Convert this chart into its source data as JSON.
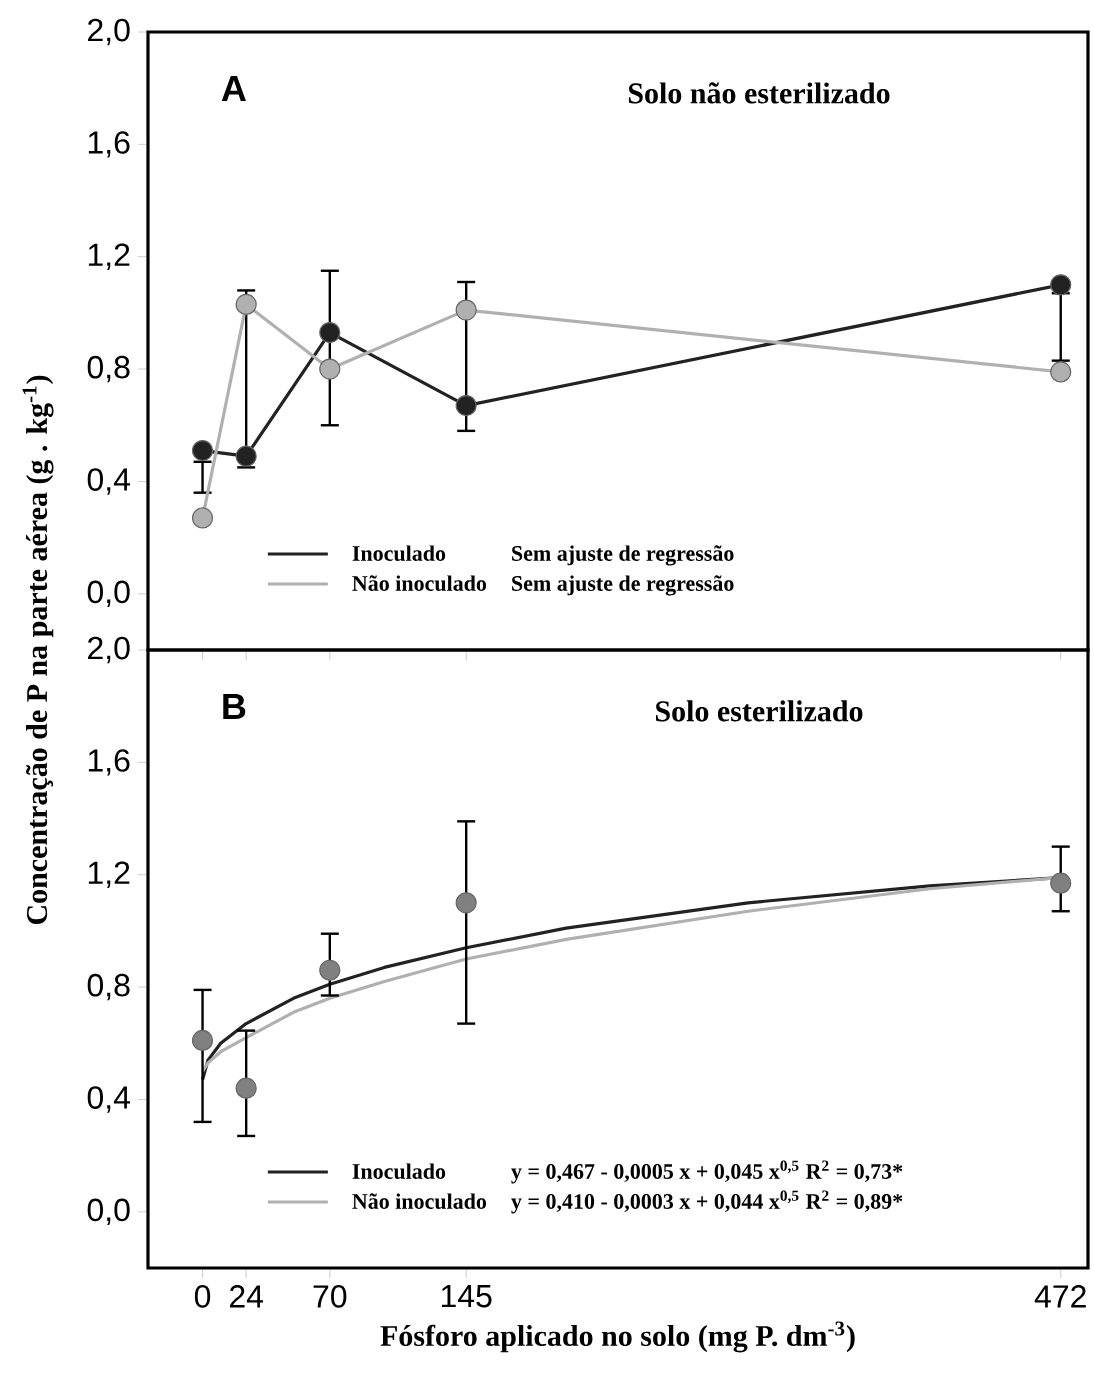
{
  "chart_data": [
    {
      "type": "line",
      "title": "Solo não esterilizado",
      "ylabel": "Concentração de P na parte aérea (g . kg$^{-1}$)",
      "annotations": [
        "A",
        "Sem ajuste de regressão",
        "Sem ajuste de regressão"
      ],
      "x": [
        0,
        24,
        70,
        145,
        472
      ],
      "xlim": [
        -30,
        487
      ],
      "xticks": [
        0,
        24,
        70,
        145,
        472
      ],
      "ylim": [
        -0.2,
        2.0
      ],
      "yticks": [
        {
          "value": 0,
          "label": "0,0"
        },
        {
          "value": 0.4,
          "label": "0,4"
        },
        {
          "value": 0.8,
          "label": "0,8"
        },
        {
          "value": 1.2,
          "label": "1,2"
        },
        {
          "value": 1.6,
          "label": "1,6"
        },
        {
          "value": 2.0,
          "label": "2,0"
        }
      ],
      "tick_labels": "y",
      "marker": "circle",
      "legend": "bottom left",
      "series": [
        {
          "name": "Inoculado",
          "color": "#222222",
          "values": [
            0.51,
            0.49,
            0.93,
            0.67,
            1.1
          ],
          "errors": [
            [
              0.36,
              0.47
            ],
            [
              0.45,
              1.08
            ],
            [
              0.6,
              1.15
            ],
            [
              0.58,
              1.11
            ],
            [
              0.83,
              1.07
            ]
          ]
        },
        {
          "name": "Não inoculado",
          "color": "#b0b0b0",
          "values": [
            0.27,
            1.03,
            0.8,
            1.01,
            0.79
          ]
        }
      ]
    },
    {
      "type": "line",
      "title": "Solo esterilizado",
      "xlabel": "Fósforo aplicado no solo (mg P. dm$^{-3}$)",
      "annotations": [
        "B",
        "y = 0,467 - 0,0005 x + 0,045 x$^{0,5}$  R$^{2}$ = 0,73*",
        "y = 0,410 - 0,0003 x + 0,044 x$^{0,5}$  R$^{2}$ = 0,89*"
      ],
      "xlim": [
        -30,
        487
      ],
      "xticks": [
        0,
        24,
        70,
        145,
        472
      ],
      "ylim": [
        -0.2,
        2.0
      ],
      "yticks": [
        {
          "value": 0,
          "label": "0,0"
        },
        {
          "value": 0.4,
          "label": "0,4"
        },
        {
          "value": 0.8,
          "label": "0,8"
        },
        {
          "value": 1.2,
          "label": "1,2"
        },
        {
          "value": 1.6,
          "label": "1,6"
        },
        {
          "value": 2.0,
          "label": "2,0"
        }
      ],
      "marker": "none",
      "legend": "bottom left",
      "series": [
        {
          "name": "Inoculado",
          "color": "#222222",
          "x": [
            0,
            3,
            10,
            24,
            50,
            70,
            100,
            145,
            200,
            300,
            400,
            472
          ],
          "values": [
            0.47,
            0.54,
            0.6,
            0.67,
            0.76,
            0.81,
            0.87,
            0.94,
            1.01,
            1.1,
            1.16,
            1.19
          ]
        },
        {
          "name": "Não inoculado",
          "color": "#b0b0b0",
          "x": [
            0,
            3,
            10,
            24,
            50,
            70,
            100,
            145,
            200,
            300,
            400,
            472
          ],
          "values": [
            0.5,
            0.53,
            0.57,
            0.62,
            0.71,
            0.76,
            0.82,
            0.9,
            0.97,
            1.07,
            1.15,
            1.19
          ]
        },
        {
          "type": "scatter",
          "color": "#808080",
          "x": [
            0,
            24,
            70,
            145,
            472
          ],
          "values": [
            0.61,
            0.44,
            0.86,
            1.1,
            1.17
          ],
          "errors": [
            [
              0.32,
              0.79
            ],
            [
              0.27,
              0.645
            ],
            [
              0.77,
              0.99
            ],
            [
              0.67,
              1.39
            ],
            [
              1.07,
              1.3
            ]
          ]
        }
      ]
    }
  ]
}
